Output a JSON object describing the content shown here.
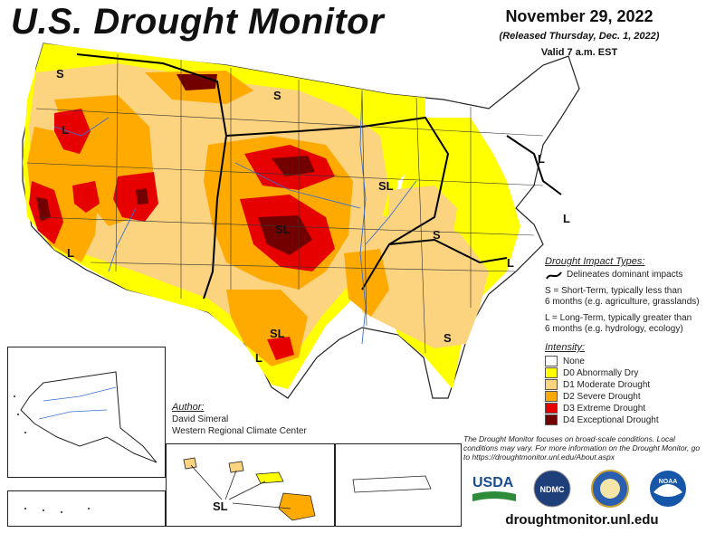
{
  "header": {
    "title": "U.S. Drought Monitor",
    "date": "November 29, 2022",
    "released": "(Released Thursday, Dec. 1, 2022)",
    "valid": "Valid 7 a.m. EST"
  },
  "map_labels": {
    "s_northwest": "S",
    "l_oregon": "L",
    "l_california": "L",
    "s_dakotas": "S",
    "sl_plains": "SL",
    "sl_texas": "SL",
    "l_texas": "L",
    "sl_midwest": "SL",
    "s_tennessee": "S",
    "l_carolinas": "L",
    "s_georgia": "S",
    "l_newengland": "L",
    "l_midatlantic": "L",
    "sl_hawaii": "SL"
  },
  "impact_legend": {
    "title": "Drought Impact Types:",
    "line_desc": "Delineates dominant impacts",
    "short_term": "S = Short-Term, typically less than",
    "short_term_2": "6 months (e.g. agriculture, grasslands)",
    "long_term": "L = Long-Term, typically greater than",
    "long_term_2": "6 months (e.g. hydrology, ecology)"
  },
  "intensity_legend": {
    "title": "Intensity:",
    "items": [
      {
        "label": "None",
        "color": "#ffffff"
      },
      {
        "label": "D0 Abnormally Dry",
        "color": "#ffff00"
      },
      {
        "label": "D1 Moderate Drought",
        "color": "#fcd37f"
      },
      {
        "label": "D2 Severe Drought",
        "color": "#ffaa00"
      },
      {
        "label": "D3 Extreme Drought",
        "color": "#e60000"
      },
      {
        "label": "D4 Exceptional Drought",
        "color": "#730000"
      }
    ]
  },
  "author": {
    "heading": "Author:",
    "name": "David Simeral",
    "org": "Western Regional Climate Center"
  },
  "footnote": "The Drought Monitor focuses on broad-scale conditions. Local conditions may vary. For more information on the Drought Monitor, go to https://droughtmonitor.unl.edu/About.aspx",
  "logos": {
    "usda": "USDA",
    "ndmc": "NDMC",
    "noaa": "NOAA"
  },
  "url": "droughtmonitor.unl.edu"
}
